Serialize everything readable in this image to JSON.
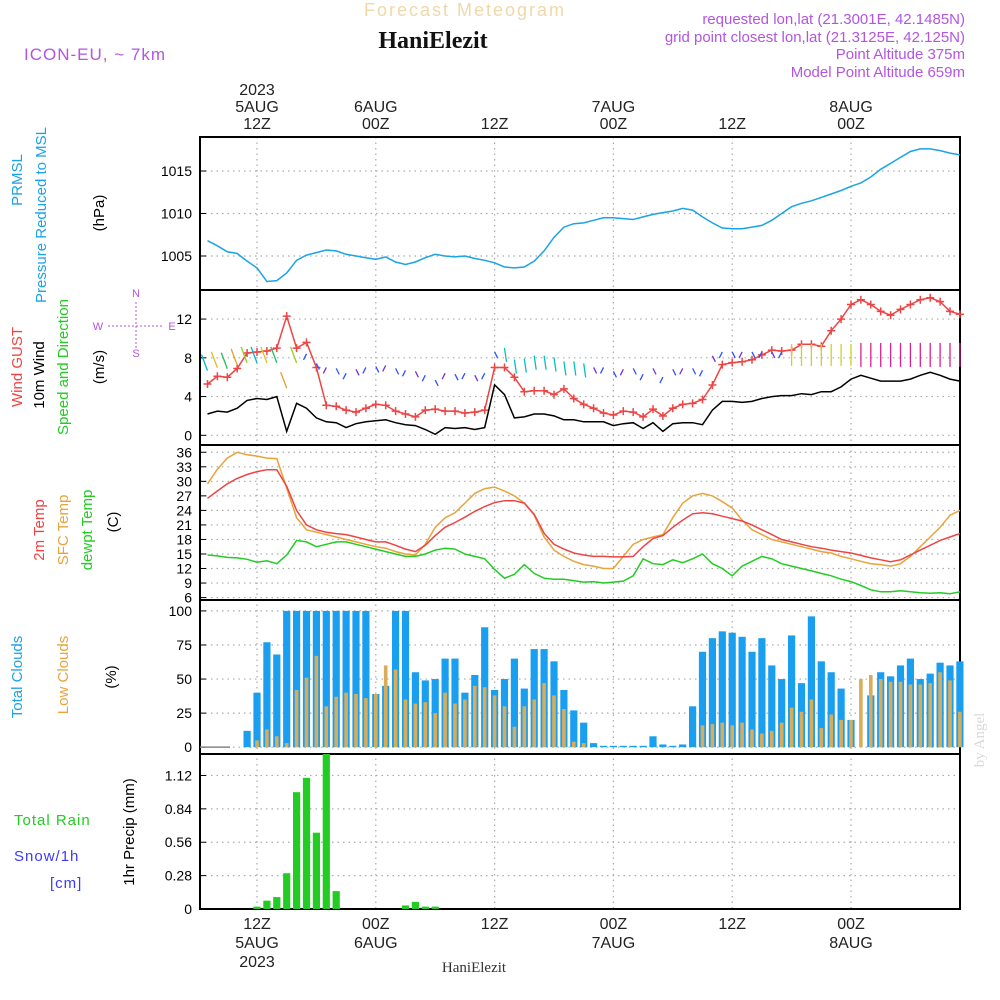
{
  "header": {
    "faded_title": "Forecast Meteogram",
    "station": "HaniElezit",
    "model": "ICON-EU, ~ 7km",
    "requested": "requested lon,lat (21.3001E, 42.1485N)",
    "grid_point": "grid point closest lon,lat (21.3125E, 42.125N)",
    "point_altitude": "Point Altitude 375m",
    "model_altitude": "Model Point Altitude 659m",
    "footer": "HaniElezit",
    "watermark": "by Angel"
  },
  "colors": {
    "pressure": "#1aa3e6",
    "gust": "#ee4444",
    "wind": "#000000",
    "temp": "#ee4444",
    "sfc": "#e8a33a",
    "dew": "#22cc22",
    "total_clouds": "#1a9ff0",
    "low_clouds": "#d9ac5a",
    "rain": "#22cc22",
    "label_blue": "#1aa3e6",
    "label_green": "#22cc22",
    "label_orange": "#e8a33a",
    "label_red": "#ee4444",
    "label_purple": "#b355e0",
    "snow_label": "#3b3bff",
    "grid": "#aaaaaa"
  },
  "time_axis": {
    "top": [
      {
        "h": 12,
        "lines": [
          "2023",
          "5AUG",
          "12Z"
        ]
      },
      {
        "h": 24,
        "lines": [
          "6AUG",
          "00Z"
        ]
      },
      {
        "h": 36,
        "lines": [
          "12Z"
        ]
      },
      {
        "h": 48,
        "lines": [
          "7AUG",
          "00Z"
        ]
      },
      {
        "h": 60,
        "lines": [
          "12Z"
        ]
      },
      {
        "h": 72,
        "lines": [
          "8AUG",
          "00Z"
        ]
      }
    ],
    "bottom": [
      {
        "h": 12,
        "lines": [
          "12Z",
          "5AUG",
          "2023"
        ]
      },
      {
        "h": 24,
        "lines": [
          "00Z",
          "6AUG"
        ]
      },
      {
        "h": 36,
        "lines": [
          "12Z"
        ]
      },
      {
        "h": 48,
        "lines": [
          "00Z",
          "7AUG"
        ]
      },
      {
        "h": 60,
        "lines": [
          "12Z"
        ]
      },
      {
        "h": 72,
        "lines": [
          "00Z",
          "8AUG"
        ]
      }
    ]
  },
  "panels": {
    "pressure": {
      "labels": [
        "PRMSL",
        "Pressure Reduced to MSL"
      ],
      "unit": "(hPa)"
    },
    "wind": {
      "labels": [
        "Wind GUST",
        "10m Wind",
        "Speed and Direction"
      ],
      "unit": "(m/s)",
      "compass": {
        "n": "N",
        "e": "E",
        "s": "S",
        "w": "W"
      }
    },
    "temp": {
      "labels": [
        "2m Temp",
        "SFC Temp",
        "dewpt Temp"
      ],
      "unit": "(C)"
    },
    "clouds": {
      "labels": [
        "Total Clouds",
        "Low Clouds"
      ],
      "unit": "(%)"
    },
    "precip": {
      "labels": [
        "Total Rain",
        "Snow/1h",
        "[cm]"
      ],
      "unit": "1hr Precip (mm)"
    }
  },
  "chart_data": [
    {
      "type": "line",
      "name": "pressure",
      "ylabel": "(hPa)",
      "ylim": [
        1001,
        1019
      ],
      "yticks": [
        1005,
        1010,
        1015
      ],
      "x": [
        7,
        8,
        9,
        10,
        11,
        12,
        13,
        14,
        15,
        16,
        17,
        18,
        19,
        20,
        21,
        22,
        23,
        24,
        25,
        26,
        27,
        28,
        29,
        30,
        31,
        32,
        33,
        34,
        35,
        36,
        37,
        38,
        39,
        40,
        41,
        42,
        43,
        44,
        45,
        46,
        47,
        48,
        49,
        50,
        51,
        52,
        53,
        54,
        55,
        56,
        57,
        58,
        59,
        60,
        61,
        62,
        63,
        64,
        65,
        66,
        67,
        68,
        69,
        70,
        71,
        72,
        73,
        74,
        75,
        76,
        77,
        78,
        79,
        80,
        81,
        82,
        83
      ],
      "series": [
        {
          "values": [
            1006.8,
            1006.2,
            1005.5,
            1005.3,
            1004.4,
            1003.6,
            1002.0,
            1002.1,
            1003.0,
            1004.5,
            1005.1,
            1005.4,
            1005.7,
            1005.6,
            1005.2,
            1005.0,
            1004.8,
            1004.6,
            1004.9,
            1004.3,
            1004.0,
            1004.3,
            1004.8,
            1005.2,
            1005.0,
            1004.9,
            1005.0,
            1004.7,
            1004.5,
            1004.2,
            1003.7,
            1003.6,
            1003.7,
            1004.4,
            1005.6,
            1007.2,
            1008.4,
            1008.8,
            1008.9,
            1009.2,
            1009.5,
            1009.5,
            1009.4,
            1009.3,
            1009.6,
            1009.9,
            1010.1,
            1010.3,
            1010.6,
            1010.4,
            1009.6,
            1008.9,
            1008.3,
            1008.2,
            1008.2,
            1008.4,
            1008.6,
            1009.2,
            1010.0,
            1010.8,
            1011.2,
            1011.5,
            1011.9,
            1012.3,
            1012.7,
            1013.2,
            1013.6,
            1014.3,
            1015.2,
            1015.9,
            1016.6,
            1017.3,
            1017.6,
            1017.6,
            1017.4,
            1017.1,
            1016.9
          ]
        }
      ]
    },
    {
      "type": "line",
      "name": "wind",
      "ylabel": "(m/s)",
      "ylim": [
        -1,
        15
      ],
      "yticks": [
        0,
        4,
        8,
        12
      ],
      "x": [
        7,
        8,
        9,
        10,
        11,
        12,
        13,
        14,
        15,
        16,
        17,
        18,
        19,
        20,
        21,
        22,
        23,
        24,
        25,
        26,
        27,
        28,
        29,
        30,
        31,
        32,
        33,
        34,
        35,
        36,
        37,
        38,
        39,
        40,
        41,
        42,
        43,
        44,
        45,
        46,
        47,
        48,
        49,
        50,
        51,
        52,
        53,
        54,
        55,
        56,
        57,
        58,
        59,
        60,
        61,
        62,
        63,
        64,
        65,
        66,
        67,
        68,
        69,
        70,
        71,
        72,
        73,
        74,
        75,
        76,
        77,
        78,
        79,
        80,
        81,
        82,
        83
      ],
      "series": [
        {
          "name": "Wind GUST",
          "values": [
            5.3,
            6.1,
            6.0,
            6.9,
            8.5,
            8.6,
            8.7,
            9.0,
            12.3,
            9.0,
            9.6,
            7.0,
            3.1,
            3.0,
            2.6,
            2.4,
            2.8,
            3.2,
            3.1,
            2.5,
            2.2,
            1.9,
            2.6,
            2.7,
            2.5,
            2.5,
            2.3,
            2.4,
            2.6,
            7.0,
            7.0,
            6.0,
            4.5,
            4.6,
            4.6,
            4.2,
            4.8,
            3.8,
            3.2,
            2.8,
            2.3,
            2.1,
            2.5,
            2.4,
            1.9,
            2.7,
            2.0,
            2.8,
            3.2,
            3.3,
            3.7,
            5.2,
            7.3,
            7.5,
            7.6,
            7.8,
            8.3,
            8.8,
            8.7,
            8.8,
            9.4,
            9.4,
            9.2,
            10.8,
            12.0,
            13.5,
            14.0,
            13.5,
            12.8,
            12.4,
            13.0,
            13.5,
            14.0,
            14.2,
            13.8,
            12.8,
            12.5
          ]
        },
        {
          "name": "10m Wind",
          "values": [
            2.2,
            2.5,
            2.4,
            2.8,
            3.6,
            3.8,
            3.7,
            4.0,
            0.4,
            3.3,
            2.8,
            1.8,
            1.4,
            1.3,
            0.8,
            1.2,
            1.4,
            1.5,
            1.6,
            1.3,
            1.1,
            1.0,
            0.6,
            0.1,
            0.8,
            0.7,
            0.8,
            0.6,
            0.8,
            5.2,
            4.2,
            1.8,
            1.9,
            2.2,
            2.2,
            2.0,
            1.6,
            1.6,
            1.4,
            1.4,
            1.4,
            1.0,
            1.2,
            1.3,
            0.7,
            1.3,
            0.4,
            1.2,
            1.3,
            1.3,
            1.1,
            2.6,
            3.5,
            3.5,
            3.4,
            3.5,
            3.8,
            4.0,
            4.1,
            4.1,
            4.3,
            4.2,
            4.5,
            4.5,
            5.0,
            5.8,
            6.2,
            5.9,
            5.6,
            5.6,
            5.6,
            5.8,
            6.2,
            6.5,
            6.2,
            5.8,
            5.6
          ]
        }
      ]
    },
    {
      "type": "line",
      "name": "temperature",
      "ylabel": "(C)",
      "ylim": [
        5.5,
        37.5
      ],
      "yticks": [
        6,
        9,
        12,
        15,
        18,
        21,
        24,
        27,
        30,
        33,
        36
      ],
      "x": [
        7,
        8,
        9,
        10,
        11,
        12,
        13,
        14,
        15,
        16,
        17,
        18,
        19,
        20,
        21,
        22,
        23,
        24,
        25,
        26,
        27,
        28,
        29,
        30,
        31,
        32,
        33,
        34,
        35,
        36,
        37,
        38,
        39,
        40,
        41,
        42,
        43,
        44,
        45,
        46,
        47,
        48,
        49,
        50,
        51,
        52,
        53,
        54,
        55,
        56,
        57,
        58,
        59,
        60,
        61,
        62,
        63,
        64,
        65,
        66,
        67,
        68,
        69,
        70,
        71,
        72,
        73,
        74,
        75,
        76,
        77,
        78,
        79,
        80,
        81,
        82,
        83
      ],
      "series": [
        {
          "name": "2m Temp",
          "values": [
            26.5,
            28.0,
            29.5,
            30.6,
            31.4,
            32.0,
            32.4,
            32.4,
            29.0,
            24.0,
            21.0,
            20.0,
            19.5,
            19.2,
            19.0,
            18.5,
            18.0,
            17.5,
            17.5,
            16.8,
            16.0,
            15.5,
            16.8,
            18.8,
            20.5,
            21.5,
            22.6,
            23.8,
            24.8,
            25.6,
            26.0,
            26.0,
            25.5,
            23.2,
            19.3,
            17.0,
            16.0,
            15.2,
            14.8,
            14.5,
            14.5,
            14.4,
            14.4,
            14.5,
            16.5,
            18.2,
            18.8,
            20.5,
            22.0,
            23.3,
            23.5,
            23.3,
            22.8,
            22.3,
            21.8,
            21.0,
            20.0,
            19.0,
            18.0,
            17.5,
            17.0,
            16.5,
            16.2,
            15.8,
            15.5,
            15.2,
            14.7,
            14.2,
            13.8,
            13.4,
            13.8,
            14.8,
            15.8,
            16.8,
            17.8,
            18.5,
            19.2
          ]
        },
        {
          "name": "SFC Temp",
          "values": [
            29.5,
            32.5,
            34.8,
            36.0,
            35.5,
            35.2,
            34.8,
            34.7,
            28.6,
            22.5,
            20.0,
            19.5,
            19.0,
            18.5,
            18.0,
            17.5,
            17.0,
            16.5,
            16.2,
            15.5,
            15.0,
            14.8,
            17.0,
            20.5,
            22.5,
            23.5,
            25.5,
            27.5,
            28.5,
            28.8,
            28.0,
            27.0,
            25.5,
            23.0,
            18.5,
            15.8,
            14.5,
            13.5,
            12.8,
            12.5,
            12.0,
            12.0,
            14.5,
            17.0,
            18.0,
            18.5,
            19.0,
            22.5,
            25.5,
            27.0,
            27.5,
            27.0,
            25.8,
            24.5,
            22.0,
            20.0,
            19.0,
            18.0,
            17.5,
            17.0,
            16.5,
            16.0,
            15.5,
            15.2,
            14.5,
            14.0,
            13.5,
            13.0,
            12.8,
            12.5,
            13.0,
            14.5,
            16.5,
            18.5,
            20.5,
            23.0,
            24.0
          ]
        },
        {
          "name": "dewpt Temp",
          "values": [
            14.8,
            14.6,
            14.3,
            14.2,
            13.9,
            13.3,
            13.6,
            13.0,
            14.8,
            17.8,
            17.5,
            16.5,
            17.0,
            17.5,
            17.5,
            17.0,
            16.5,
            16.0,
            15.5,
            15.0,
            14.5,
            14.5,
            15.0,
            15.8,
            16.2,
            16.0,
            15.0,
            14.5,
            14.0,
            11.8,
            10.0,
            10.8,
            12.8,
            11.0,
            10.0,
            9.8,
            9.8,
            9.5,
            9.2,
            9.3,
            9.0,
            9.2,
            9.4,
            10.5,
            14.0,
            13.0,
            12.8,
            13.8,
            13.2,
            14.0,
            15.0,
            13.0,
            12.0,
            10.5,
            12.5,
            13.5,
            14.5,
            14.0,
            13.0,
            12.5,
            12.0,
            11.5,
            11.0,
            10.5,
            9.8,
            9.3,
            8.5,
            7.6,
            7.2,
            7.2,
            7.4,
            7.2,
            7.0,
            6.9,
            7.0,
            6.8,
            7.2
          ]
        }
      ]
    },
    {
      "type": "bar",
      "name": "clouds",
      "ylabel": "(%)",
      "ylim": [
        -5,
        108
      ],
      "yticks": [
        0,
        25,
        50,
        75,
        100
      ],
      "x": [
        9,
        10,
        11,
        12,
        13,
        14,
        15,
        16,
        17,
        18,
        19,
        20,
        21,
        22,
        23,
        24,
        25,
        26,
        27,
        28,
        29,
        30,
        31,
        32,
        33,
        34,
        35,
        36,
        37,
        38,
        39,
        40,
        41,
        42,
        43,
        44,
        45,
        46,
        47,
        48,
        49,
        50,
        51,
        52,
        53,
        54,
        55,
        56,
        57,
        58,
        59,
        60,
        61,
        62,
        63,
        64,
        65,
        66,
        67,
        68,
        69,
        70,
        71,
        72,
        73,
        74,
        75,
        76,
        77,
        78,
        79,
        80,
        81,
        82,
        83
      ],
      "series": [
        {
          "name": "Total Clouds",
          "values": [
            0,
            0,
            12,
            40,
            77,
            68,
            100,
            100,
            100,
            100,
            100,
            100,
            100,
            100,
            100,
            39,
            45,
            100,
            100,
            55,
            49,
            50,
            65,
            65,
            40,
            53,
            88,
            42,
            50,
            65,
            43,
            72,
            72,
            63,
            42,
            27,
            18,
            3,
            1,
            1,
            1,
            1,
            1,
            8,
            2,
            1,
            2,
            30,
            70,
            80,
            85,
            84,
            81,
            70,
            80,
            60,
            50,
            82,
            47,
            96,
            63,
            55,
            43,
            20,
            0,
            38,
            55,
            52,
            60,
            65,
            50,
            54,
            62,
            60,
            63
          ]
        },
        {
          "name": "Low Clouds",
          "values": [
            0,
            0,
            0,
            5,
            13,
            8,
            3,
            42,
            51,
            67,
            30,
            37,
            40,
            39,
            36,
            39,
            60,
            57,
            35,
            32,
            33,
            25,
            40,
            32,
            35,
            45,
            44,
            38,
            30,
            15,
            30,
            35,
            47,
            38,
            28,
            4,
            3,
            0,
            0,
            0,
            0,
            0,
            0,
            0,
            0,
            0,
            0,
            0,
            16,
            17,
            18,
            16,
            18,
            13,
            10,
            12,
            18,
            29,
            26,
            35,
            14,
            24,
            20,
            20,
            50,
            53,
            50,
            48,
            48,
            46,
            46,
            47,
            55,
            49,
            26
          ]
        }
      ]
    },
    {
      "type": "bar",
      "name": "precip",
      "ylabel": "1hr Precip (mm)",
      "ylim": [
        0,
        1.3
      ],
      "yticks": [
        0,
        0.28,
        0.56,
        0.84,
        1.12
      ],
      "x": [
        12,
        13,
        14,
        15,
        16,
        17,
        18,
        19,
        20,
        27,
        28,
        29,
        30
      ],
      "series": [
        {
          "name": "Total Rain",
          "values": [
            0.02,
            0.07,
            0.1,
            0.3,
            0.98,
            1.1,
            0.64,
            1.3,
            0.15,
            0.03,
            0.06,
            0.02,
            0.02
          ]
        }
      ]
    }
  ]
}
